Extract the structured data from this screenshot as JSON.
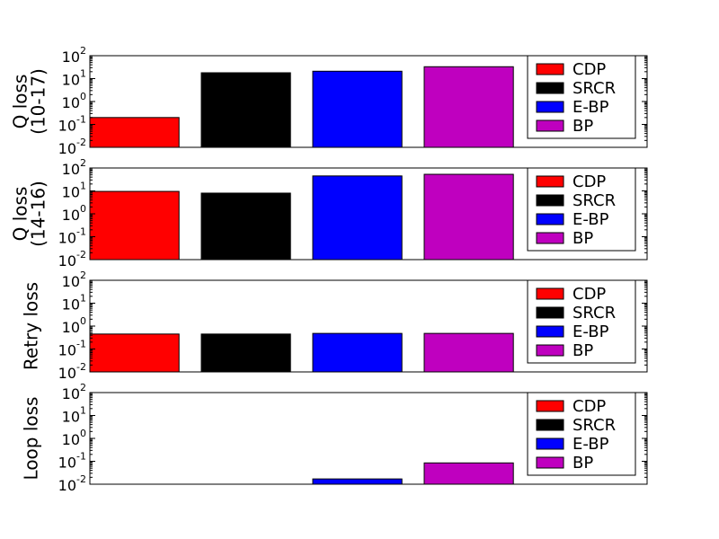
{
  "chart_data": [
    {
      "type": "bar",
      "ylabel": [
        "Q loss",
        "(10-17)"
      ],
      "log": true,
      "legend": "upper right",
      "ylim": [
        0.01,
        100
      ],
      "yticks": [
        {
          "value": 0.01,
          "label": "10^-2"
        },
        {
          "value": 0.1,
          "label": "10^-1"
        },
        {
          "value": 1,
          "label": "10^0"
        },
        {
          "value": 10,
          "label": "10^1"
        },
        {
          "value": 100,
          "label": "10^2"
        }
      ],
      "series": [
        {
          "name": "CDP",
          "color": "#ff0000",
          "values": [
            0.2
          ]
        },
        {
          "name": "SRCR",
          "color": "#000000",
          "values": [
            18
          ]
        },
        {
          "name": "E-BP",
          "color": "#0000ff",
          "values": [
            21
          ]
        },
        {
          "name": "BP",
          "color": "#bf00bf",
          "values": [
            33
          ]
        }
      ]
    },
    {
      "type": "bar",
      "ylabel": [
        "Q loss",
        "(14-16)"
      ],
      "log": true,
      "legend": "upper right",
      "ylim": [
        0.01,
        100
      ],
      "yticks": [
        {
          "value": 0.01,
          "label": "10^-2"
        },
        {
          "value": 0.1,
          "label": "10^-1"
        },
        {
          "value": 1,
          "label": "10^0"
        },
        {
          "value": 10,
          "label": "10^1"
        },
        {
          "value": 100,
          "label": "10^2"
        }
      ],
      "series": [
        {
          "name": "CDP",
          "color": "#ff0000",
          "values": [
            9.5
          ]
        },
        {
          "name": "SRCR",
          "color": "#000000",
          "values": [
            8
          ]
        },
        {
          "name": "E-BP",
          "color": "#0000ff",
          "values": [
            45
          ]
        },
        {
          "name": "BP",
          "color": "#bf00bf",
          "values": [
            53
          ]
        }
      ]
    },
    {
      "type": "bar",
      "ylabel": [
        "Retry loss"
      ],
      "log": true,
      "legend": "upper right",
      "ylim": [
        0.01,
        100
      ],
      "yticks": [
        {
          "value": 0.01,
          "label": "10^-2"
        },
        {
          "value": 0.1,
          "label": "10^-1"
        },
        {
          "value": 1,
          "label": "10^0"
        },
        {
          "value": 10,
          "label": "10^1"
        },
        {
          "value": 100,
          "label": "10^2"
        }
      ],
      "series": [
        {
          "name": "CDP",
          "color": "#ff0000",
          "values": [
            0.45
          ]
        },
        {
          "name": "SRCR",
          "color": "#000000",
          "values": [
            0.45
          ]
        },
        {
          "name": "E-BP",
          "color": "#0000ff",
          "values": [
            0.48
          ]
        },
        {
          "name": "BP",
          "color": "#bf00bf",
          "values": [
            0.48
          ]
        }
      ]
    },
    {
      "type": "bar",
      "ylabel": [
        "Loop loss"
      ],
      "log": true,
      "legend": "upper right",
      "ylim": [
        0.01,
        100
      ],
      "yticks": [
        {
          "value": 0.01,
          "label": "10^-2"
        },
        {
          "value": 0.1,
          "label": "10^-1"
        },
        {
          "value": 1,
          "label": "10^0"
        },
        {
          "value": 10,
          "label": "10^1"
        },
        {
          "value": 100,
          "label": "10^2"
        }
      ],
      "series": [
        {
          "name": "CDP",
          "color": "#ff0000",
          "values": [
            null
          ]
        },
        {
          "name": "SRCR",
          "color": "#000000",
          "values": [
            null
          ]
        },
        {
          "name": "E-BP",
          "color": "#0000ff",
          "values": [
            0.017
          ]
        },
        {
          "name": "BP",
          "color": "#bf00bf",
          "values": [
            0.085
          ]
        }
      ]
    }
  ]
}
